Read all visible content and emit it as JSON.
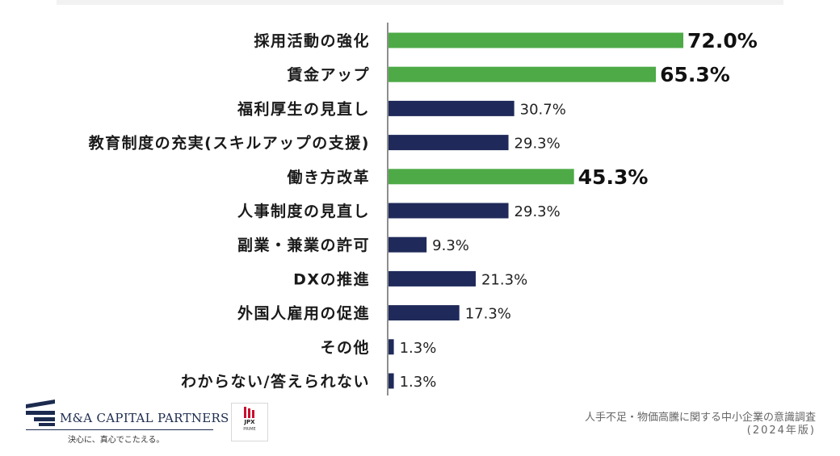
{
  "chart_data": {
    "type": "bar",
    "orientation": "horizontal",
    "categories": [
      "採用活動の強化",
      "賃金アップ",
      "福利厚生の見直し",
      "教育制度の充実(スキルアップの支援)",
      "働き方改革",
      "人事制度の見直し",
      "副業・兼業の許可",
      "DXの推進",
      "外国人雇用の促進",
      "その他",
      "わからない/答えられない"
    ],
    "values": [
      72.0,
      65.3,
      30.7,
      29.3,
      45.3,
      29.3,
      9.3,
      21.3,
      17.3,
      1.3,
      1.3
    ],
    "value_labels": [
      "72.0%",
      "65.3%",
      "30.7%",
      "29.3%",
      "45.3%",
      "29.3%",
      "9.3%",
      "21.3%",
      "17.3%",
      "1.3%",
      "1.3%"
    ],
    "highlighted": [
      true,
      true,
      false,
      false,
      true,
      false,
      false,
      false,
      false,
      false,
      false
    ],
    "unit": "%",
    "xlim": [
      0,
      100
    ],
    "grid": false,
    "colors": {
      "highlight": "#4daa46",
      "default": "#1f2a5a",
      "axis": "#444444"
    }
  },
  "footer": {
    "logo_name": "M&A CAPITAL PARTNERS",
    "logo_tagline": "決心に、真心でこたえる。",
    "badge_text": "JPX",
    "badge_sub": "PRIME",
    "source_line1": "人手不足・物価高騰に関する中小企業の意識調査",
    "source_line2": "(2024年版)"
  }
}
